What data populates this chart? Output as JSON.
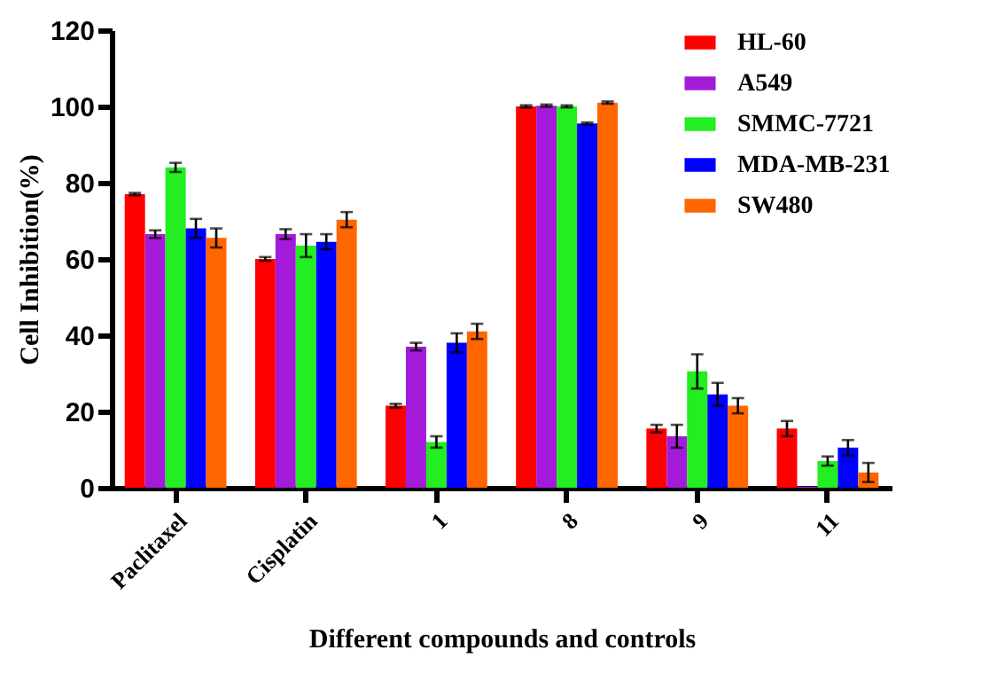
{
  "chart_data": {
    "type": "bar",
    "xlabel": "Different compounds and controls",
    "ylabel": "Cell Inhibition(%)",
    "categories": [
      "Paclitaxel",
      "Cisplatin",
      "1",
      "8",
      "9",
      "11"
    ],
    "series": [
      {
        "name": "HL-60",
        "color": "#ff0000",
        "values": [
          77,
          60,
          21.5,
          100,
          15.5,
          15.5
        ],
        "errors": [
          0.3,
          0.5,
          0.5,
          0.3,
          1,
          2
        ]
      },
      {
        "name": "A549",
        "color": "#a31bd8",
        "values": [
          66.5,
          66.5,
          37,
          100.2,
          13.5,
          0.3
        ],
        "errors": [
          1,
          1.3,
          1,
          0.3,
          3,
          null
        ]
      },
      {
        "name": "SMMC-7721",
        "color": "#22ee22",
        "values": [
          84,
          63.5,
          12,
          100,
          30.5,
          7
        ],
        "errors": [
          1.2,
          3,
          1.5,
          0.3,
          4.5,
          1.2
        ]
      },
      {
        "name": "MDA-MB-231",
        "color": "#0000ff",
        "values": [
          68,
          64.5,
          38,
          95.5,
          24.5,
          10.5
        ],
        "errors": [
          2.5,
          2,
          2.5,
          0.3,
          3,
          2
        ]
      },
      {
        "name": "SW480",
        "color": "#ff6600",
        "values": [
          65.5,
          70.3,
          41,
          101,
          21.5,
          4
        ],
        "errors": [
          2.5,
          2,
          2,
          0.3,
          2,
          2.5
        ]
      }
    ],
    "ylim": [
      0,
      120
    ],
    "yticks": [
      0,
      20,
      40,
      60,
      80,
      100,
      120
    ],
    "grid": false,
    "legend": "top right"
  }
}
